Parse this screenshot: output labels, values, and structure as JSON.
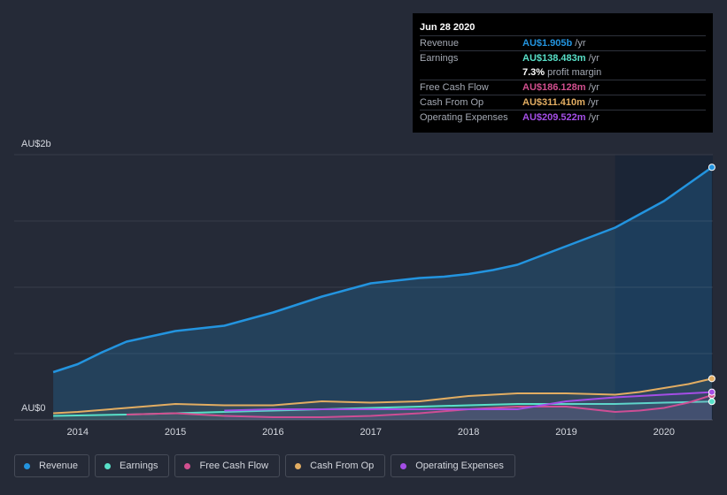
{
  "chart_data": {
    "type": "line",
    "title": "",
    "y_top_label": "AU$2b",
    "y_bottom_label": "AU$0",
    "ylim": [
      0,
      2.0
    ],
    "xlim": [
      2013.35,
      2020.5
    ],
    "forecast_shade_start": 2019.5,
    "x_ticks": [
      {
        "value": 2014,
        "label": "2014"
      },
      {
        "value": 2015,
        "label": "2015"
      },
      {
        "value": 2016,
        "label": "2016"
      },
      {
        "value": 2017,
        "label": "2017"
      },
      {
        "value": 2018,
        "label": "2018"
      },
      {
        "value": 2019,
        "label": "2019"
      },
      {
        "value": 2020,
        "label": "2020"
      }
    ],
    "series": [
      {
        "name": "Revenue",
        "key": "revenue",
        "color": "#2394df",
        "filled": true,
        "points": [
          [
            2013.75,
            0.36
          ],
          [
            2014.0,
            0.42
          ],
          [
            2014.25,
            0.51
          ],
          [
            2014.5,
            0.59
          ],
          [
            2014.75,
            0.63
          ],
          [
            2015.0,
            0.67
          ],
          [
            2015.25,
            0.69
          ],
          [
            2015.5,
            0.71
          ],
          [
            2015.75,
            0.76
          ],
          [
            2016.0,
            0.81
          ],
          [
            2016.25,
            0.87
          ],
          [
            2016.5,
            0.93
          ],
          [
            2016.75,
            0.98
          ],
          [
            2017.0,
            1.03
          ],
          [
            2017.25,
            1.05
          ],
          [
            2017.5,
            1.07
          ],
          [
            2017.75,
            1.08
          ],
          [
            2018.0,
            1.1
          ],
          [
            2018.25,
            1.13
          ],
          [
            2018.5,
            1.17
          ],
          [
            2018.75,
            1.24
          ],
          [
            2019.0,
            1.31
          ],
          [
            2019.25,
            1.38
          ],
          [
            2019.5,
            1.45
          ],
          [
            2019.75,
            1.55
          ],
          [
            2020.0,
            1.65
          ],
          [
            2020.25,
            1.78
          ],
          [
            2020.49,
            1.905
          ]
        ]
      },
      {
        "name": "Earnings",
        "key": "earnings",
        "color": "#58e0c8",
        "filled": false,
        "points": [
          [
            2013.75,
            0.03
          ],
          [
            2014.5,
            0.04
          ],
          [
            2015.0,
            0.05
          ],
          [
            2015.5,
            0.06
          ],
          [
            2016.0,
            0.07
          ],
          [
            2016.5,
            0.08
          ],
          [
            2017.0,
            0.09
          ],
          [
            2017.5,
            0.1
          ],
          [
            2018.0,
            0.11
          ],
          [
            2018.5,
            0.12
          ],
          [
            2019.0,
            0.12
          ],
          [
            2019.5,
            0.12
          ],
          [
            2020.0,
            0.13
          ],
          [
            2020.49,
            0.138
          ]
        ]
      },
      {
        "name": "Free Cash Flow",
        "key": "fcf",
        "color": "#d24f8f",
        "filled": false,
        "points": [
          [
            2014.5,
            0.04
          ],
          [
            2015.0,
            0.05
          ],
          [
            2015.5,
            0.03
          ],
          [
            2016.0,
            0.02
          ],
          [
            2016.5,
            0.02
          ],
          [
            2017.0,
            0.03
          ],
          [
            2017.5,
            0.05
          ],
          [
            2018.0,
            0.08
          ],
          [
            2018.5,
            0.1
          ],
          [
            2019.0,
            0.1
          ],
          [
            2019.25,
            0.08
          ],
          [
            2019.5,
            0.06
          ],
          [
            2019.75,
            0.07
          ],
          [
            2020.0,
            0.09
          ],
          [
            2020.25,
            0.13
          ],
          [
            2020.49,
            0.186
          ]
        ]
      },
      {
        "name": "Cash From Op",
        "key": "cfo",
        "color": "#e2ad62",
        "filled": false,
        "points": [
          [
            2013.75,
            0.05
          ],
          [
            2014.0,
            0.06
          ],
          [
            2014.5,
            0.09
          ],
          [
            2015.0,
            0.12
          ],
          [
            2015.5,
            0.11
          ],
          [
            2016.0,
            0.11
          ],
          [
            2016.5,
            0.14
          ],
          [
            2017.0,
            0.13
          ],
          [
            2017.5,
            0.14
          ],
          [
            2018.0,
            0.18
          ],
          [
            2018.5,
            0.2
          ],
          [
            2019.0,
            0.2
          ],
          [
            2019.5,
            0.19
          ],
          [
            2019.75,
            0.21
          ],
          [
            2020.0,
            0.24
          ],
          [
            2020.25,
            0.27
          ],
          [
            2020.49,
            0.311
          ]
        ]
      },
      {
        "name": "Operating Expenses",
        "key": "opex",
        "color": "#a44ee6",
        "filled": false,
        "points": [
          [
            2015.5,
            0.07
          ],
          [
            2016.0,
            0.08
          ],
          [
            2016.5,
            0.08
          ],
          [
            2017.0,
            0.08
          ],
          [
            2017.5,
            0.08
          ],
          [
            2018.0,
            0.08
          ],
          [
            2018.5,
            0.08
          ],
          [
            2018.75,
            0.11
          ],
          [
            2019.0,
            0.14
          ],
          [
            2019.5,
            0.17
          ],
          [
            2020.0,
            0.19
          ],
          [
            2020.49,
            0.2095
          ]
        ]
      }
    ],
    "tooltip": {
      "date": "Jun 28 2020",
      "rows": [
        {
          "label": "Revenue",
          "value": "AU$1.905b",
          "unit": "/yr",
          "color": "#2394df"
        },
        {
          "label": "Earnings",
          "value": "AU$138.483m",
          "unit": "/yr",
          "color": "#58e0c8"
        },
        {
          "label": "",
          "value": "7.3%",
          "unit": "profit margin",
          "color": "#ffffff",
          "sub": true
        },
        {
          "label": "Free Cash Flow",
          "value": "AU$186.128m",
          "unit": "/yr",
          "color": "#d24f8f"
        },
        {
          "label": "Cash From Op",
          "value": "AU$311.410m",
          "unit": "/yr",
          "color": "#e2ad62"
        },
        {
          "label": "Operating Expenses",
          "value": "AU$209.522m",
          "unit": "/yr",
          "color": "#a44ee6"
        }
      ]
    }
  },
  "legend": [
    {
      "label": "Revenue",
      "color": "#2394df"
    },
    {
      "label": "Earnings",
      "color": "#58e0c8"
    },
    {
      "label": "Free Cash Flow",
      "color": "#d24f8f"
    },
    {
      "label": "Cash From Op",
      "color": "#e2ad62"
    },
    {
      "label": "Operating Expenses",
      "color": "#a44ee6"
    }
  ]
}
